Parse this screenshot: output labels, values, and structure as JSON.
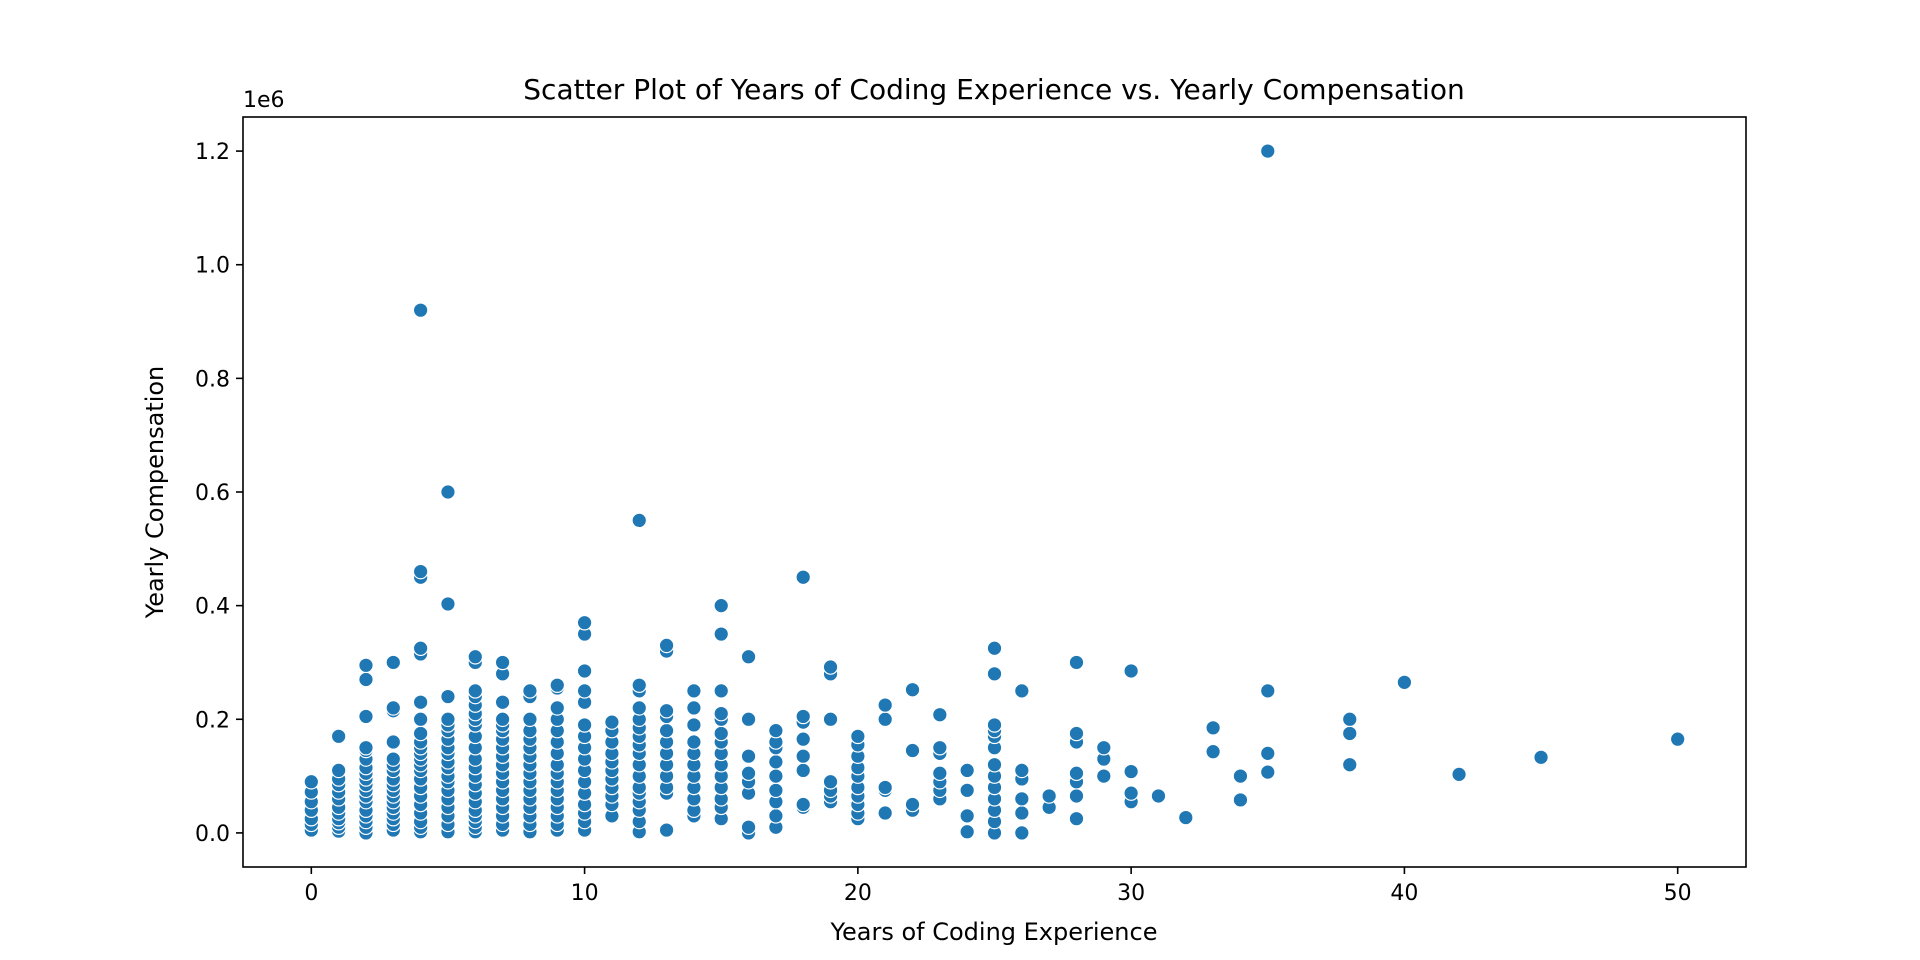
{
  "chart_data": {
    "type": "scatter",
    "title": "Scatter Plot of Years of Coding Experience vs. Yearly Compensation",
    "xlabel": "Years of Coding Experience",
    "ylabel": "Yearly Compensation",
    "y_offset_label": "1e6",
    "xlim": [
      -2.5,
      52.5
    ],
    "ylim": [
      -60000,
      1260000
    ],
    "xticks": [
      0,
      10,
      20,
      30,
      40,
      50
    ],
    "xtick_labels": [
      "0",
      "10",
      "20",
      "30",
      "40",
      "50"
    ],
    "yticks": [
      0,
      200000,
      400000,
      600000,
      800000,
      1000000,
      1200000
    ],
    "ytick_labels": [
      "0.0",
      "0.2",
      "0.4",
      "0.6",
      "0.8",
      "1.0",
      "1.2"
    ],
    "grid": false,
    "legend": "none",
    "marker_color": "#1f77b4",
    "marker_edge_color": "#ffffff",
    "points": [
      {
        "x": 0,
        "y": [
          5000,
          15000,
          25000,
          40000,
          55000,
          72000,
          90000
        ]
      },
      {
        "x": 1,
        "y": [
          3000,
          10000,
          18000,
          25000,
          35000,
          45000,
          60000,
          72000,
          85000,
          95000,
          110000,
          170000
        ]
      },
      {
        "x": 2,
        "y": [
          0,
          10000,
          20000,
          30000,
          40000,
          55000,
          65000,
          75000,
          85000,
          95000,
          105000,
          115000,
          130000,
          145000,
          150000,
          205000,
          270000,
          295000
        ]
      },
      {
        "x": 3,
        "y": [
          5000,
          15000,
          25000,
          35000,
          45000,
          55000,
          65000,
          75000,
          85000,
          95000,
          110000,
          120000,
          130000,
          160000,
          215000,
          220000,
          300000
        ]
      },
      {
        "x": 4,
        "y": [
          2000,
          10000,
          20000,
          35000,
          50000,
          65000,
          80000,
          95000,
          110000,
          120000,
          130000,
          140000,
          150000,
          160000,
          175000,
          200000,
          230000,
          315000,
          325000,
          450000,
          460000,
          920000
        ]
      },
      {
        "x": 5,
        "y": [
          2000,
          15000,
          30000,
          45000,
          60000,
          75000,
          90000,
          100000,
          115000,
          125000,
          140000,
          150000,
          165000,
          180000,
          190000,
          200000,
          240000,
          403000,
          600000
        ]
      },
      {
        "x": 6,
        "y": [
          2000,
          10000,
          20000,
          30000,
          40000,
          55000,
          70000,
          85000,
          100000,
          115000,
          130000,
          150000,
          170000,
          190000,
          200000,
          210000,
          225000,
          240000,
          250000,
          300000,
          310000
        ]
      },
      {
        "x": 7,
        "y": [
          5000,
          15000,
          30000,
          45000,
          60000,
          75000,
          90000,
          105000,
          120000,
          135000,
          150000,
          165000,
          180000,
          190000,
          200000,
          230000,
          280000,
          300000
        ]
      },
      {
        "x": 8,
        "y": [
          2000,
          15000,
          30000,
          45000,
          60000,
          75000,
          90000,
          105000,
          120000,
          135000,
          150000,
          165000,
          180000,
          200000,
          240000,
          250000
        ]
      },
      {
        "x": 9,
        "y": [
          5000,
          15000,
          30000,
          45000,
          60000,
          75000,
          90000,
          105000,
          120000,
          140000,
          160000,
          180000,
          200000,
          220000,
          255000,
          260000
        ]
      },
      {
        "x": 10,
        "y": [
          5000,
          20000,
          35000,
          50000,
          70000,
          90000,
          110000,
          130000,
          150000,
          170000,
          190000,
          230000,
          250000,
          285000,
          350000,
          370000
        ]
      },
      {
        "x": 11,
        "y": [
          30000,
          50000,
          65000,
          80000,
          95000,
          110000,
          125000,
          140000,
          160000,
          180000,
          195000
        ]
      },
      {
        "x": 12,
        "y": [
          2000,
          20000,
          40000,
          55000,
          70000,
          80000,
          100000,
          120000,
          140000,
          155000,
          170000,
          185000,
          200000,
          220000,
          250000,
          260000,
          550000
        ]
      },
      {
        "x": 13,
        "y": [
          5000,
          70000,
          80000,
          100000,
          120000,
          140000,
          160000,
          180000,
          205000,
          215000,
          320000,
          330000
        ]
      },
      {
        "x": 14,
        "y": [
          30000,
          40000,
          60000,
          80000,
          100000,
          120000,
          140000,
          160000,
          190000,
          220000,
          250000
        ]
      },
      {
        "x": 15,
        "y": [
          25000,
          45000,
          60000,
          80000,
          100000,
          120000,
          140000,
          160000,
          175000,
          200000,
          210000,
          250000,
          350000,
          400000
        ]
      },
      {
        "x": 16,
        "y": [
          0,
          10000,
          70000,
          90000,
          105000,
          135000,
          200000,
          310000
        ]
      },
      {
        "x": 17,
        "y": [
          10000,
          30000,
          55000,
          75000,
          100000,
          125000,
          150000,
          160000,
          180000
        ]
      },
      {
        "x": 18,
        "y": [
          45000,
          50000,
          110000,
          135000,
          165000,
          195000,
          205000,
          450000
        ]
      },
      {
        "x": 19,
        "y": [
          55000,
          65000,
          75000,
          90000,
          200000,
          280000,
          292000
        ]
      },
      {
        "x": 20,
        "y": [
          25000,
          35000,
          50000,
          65000,
          80000,
          100000,
          115000,
          135000,
          155000,
          170000
        ]
      },
      {
        "x": 21,
        "y": [
          35000,
          75000,
          80000,
          200000,
          225000
        ]
      },
      {
        "x": 22,
        "y": [
          40000,
          50000,
          145000,
          252000
        ]
      },
      {
        "x": 23,
        "y": [
          60000,
          75000,
          90000,
          105000,
          140000,
          150000,
          208000
        ]
      },
      {
        "x": 24,
        "y": [
          2000,
          30000,
          75000,
          110000
        ]
      },
      {
        "x": 25,
        "y": [
          0,
          20000,
          40000,
          60000,
          80000,
          100000,
          120000,
          150000,
          170000,
          180000,
          190000,
          280000,
          325000
        ]
      },
      {
        "x": 26,
        "y": [
          0,
          35000,
          60000,
          95000,
          110000,
          250000
        ]
      },
      {
        "x": 27,
        "y": [
          45000,
          65000
        ]
      },
      {
        "x": 28,
        "y": [
          25000,
          65000,
          90000,
          105000,
          160000,
          175000,
          300000
        ]
      },
      {
        "x": 29,
        "y": [
          100000,
          130000,
          150000
        ]
      },
      {
        "x": 30,
        "y": [
          55000,
          70000,
          108000,
          285000
        ]
      },
      {
        "x": 31,
        "y": [
          65000
        ]
      },
      {
        "x": 32,
        "y": [
          27000
        ]
      },
      {
        "x": 33,
        "y": [
          143000,
          185000
        ]
      },
      {
        "x": 34,
        "y": [
          58000,
          100000
        ]
      },
      {
        "x": 35,
        "y": [
          107000,
          140000,
          250000,
          1200000
        ]
      },
      {
        "x": 38,
        "y": [
          120000,
          175000,
          200000
        ]
      },
      {
        "x": 40,
        "y": [
          265000
        ]
      },
      {
        "x": 42,
        "y": [
          103000
        ]
      },
      {
        "x": 45,
        "y": [
          133000
        ]
      },
      {
        "x": 50,
        "y": [
          165000
        ]
      }
    ]
  }
}
